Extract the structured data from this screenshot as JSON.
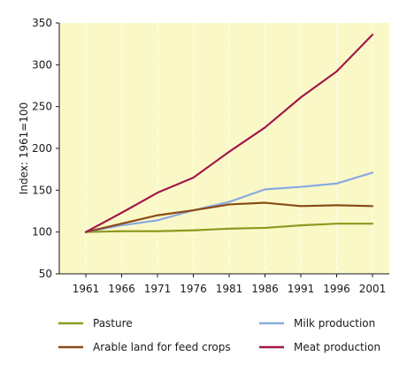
{
  "chart_data": {
    "type": "line",
    "title": "",
    "xlabel": "",
    "ylabel": "Index: 1961=100",
    "ylim": [
      50,
      350
    ],
    "yticks": [
      50,
      100,
      150,
      200,
      250,
      300,
      350
    ],
    "categories": [
      "1961",
      "1966",
      "1971",
      "1976",
      "1981",
      "1986",
      "1991",
      "1996",
      "2001"
    ],
    "grid": "vertical dashed lines, shaded plot background",
    "plot_background": "#fbf8c8",
    "grid_color": "#ffffff",
    "legend_position": "bottom",
    "series": [
      {
        "name": "Pasture",
        "color": "#8c9a1f",
        "values": [
          100,
          101,
          101,
          102,
          104,
          105,
          108,
          110,
          110
        ]
      },
      {
        "name": "Milk production",
        "color": "#89a9e0",
        "values": [
          100,
          108,
          114,
          126,
          136,
          151,
          154,
          158,
          171
        ]
      },
      {
        "name": "Arable land for feed crops",
        "color": "#8a4a17",
        "values": [
          100,
          110,
          120,
          126,
          133,
          135,
          131,
          132,
          131
        ]
      },
      {
        "name": "Meat production",
        "color": "#a3174a",
        "values": [
          100,
          123,
          147,
          165,
          196,
          225,
          261,
          292,
          336
        ]
      }
    ]
  }
}
